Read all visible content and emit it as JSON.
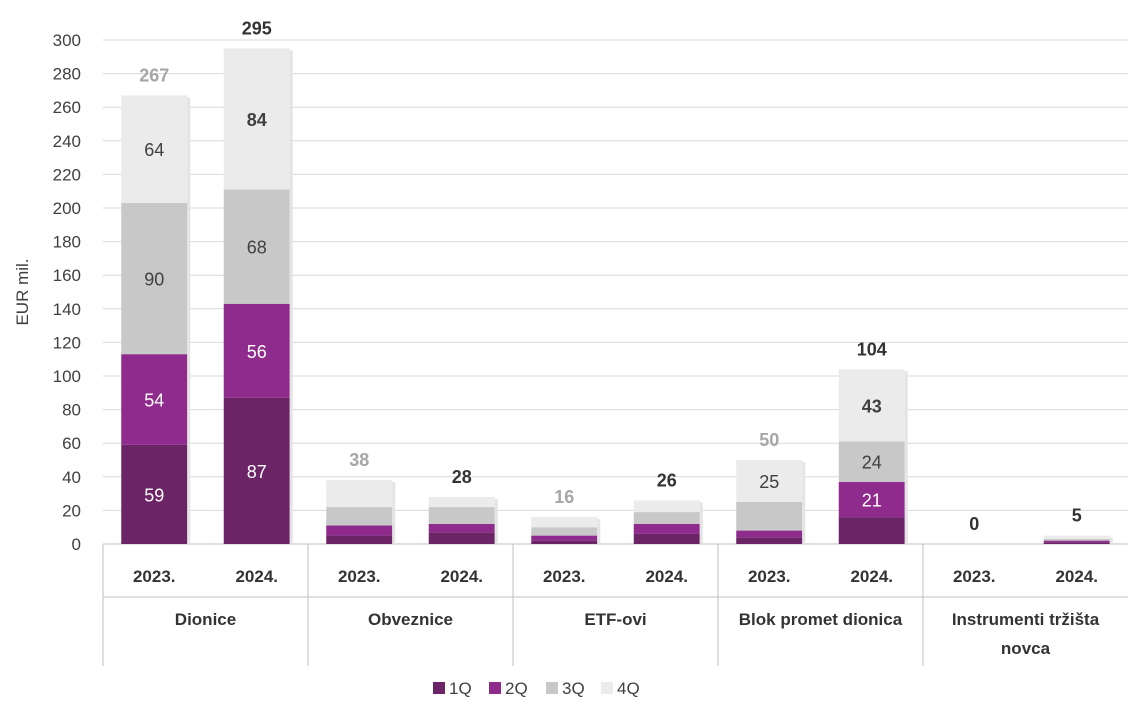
{
  "chart_data": {
    "type": "bar",
    "stacked": true,
    "ylabel": "EUR mil.",
    "ylim": [
      0,
      300
    ],
    "ytick_step": 20,
    "grid": true,
    "legend_position": "bottom",
    "groups": [
      "Dionice",
      "Obveznice",
      "ETF-ovi",
      "Blok promet dionica",
      "Instrumenti tržišta novca"
    ],
    "years": [
      "2023.",
      "2024."
    ],
    "categories": [
      "Dionice 2023.",
      "Dionice 2024.",
      "Obveznice 2023.",
      "Obveznice 2024.",
      "ETF-ovi 2023.",
      "ETF-ovi 2024.",
      "Blok promet dionica 2023.",
      "Blok promet dionica 2024.",
      "Instrumenti tržišta novca 2023.",
      "Instrumenti tržišta novca 2024."
    ],
    "series": [
      {
        "name": "1Q",
        "color": "#6b2466",
        "values": [
          59,
          87,
          5,
          7,
          2,
          6,
          4,
          16,
          0,
          1
        ]
      },
      {
        "name": "2Q",
        "color": "#8e2b8c",
        "values": [
          54,
          56,
          6,
          5,
          3,
          6,
          4,
          21,
          0,
          1
        ]
      },
      {
        "name": "3Q",
        "color": "#c8c8c8",
        "values": [
          90,
          68,
          11,
          10,
          5,
          7,
          17,
          24,
          0,
          1
        ]
      },
      {
        "name": "4Q",
        "color": "#ebebeb",
        "values": [
          64,
          84,
          16,
          6,
          6,
          7,
          25,
          43,
          0,
          2
        ]
      }
    ],
    "segment_labels": [
      [
        "59",
        "87",
        null,
        null,
        null,
        null,
        null,
        null,
        null,
        null
      ],
      [
        "54",
        "56",
        null,
        null,
        null,
        null,
        null,
        "21",
        null,
        null
      ],
      [
        "90",
        "68",
        null,
        null,
        null,
        null,
        null,
        "24",
        null,
        null
      ],
      [
        "64",
        "84",
        null,
        null,
        null,
        null,
        "25",
        "43",
        null,
        null
      ]
    ],
    "segment_label_bold": [
      [
        false,
        false,
        false,
        false,
        false,
        false,
        false,
        false,
        false,
        false
      ],
      [
        false,
        false,
        false,
        false,
        false,
        false,
        false,
        false,
        false,
        false
      ],
      [
        false,
        false,
        false,
        false,
        false,
        false,
        false,
        false,
        false,
        false
      ],
      [
        false,
        true,
        false,
        false,
        false,
        false,
        false,
        true,
        false,
        false
      ]
    ],
    "totals": [
      "267",
      "295",
      "38",
      "28",
      "16",
      "26",
      "50",
      "104",
      "0",
      "5"
    ],
    "total_colors": [
      "#a6a6a6",
      "#333333",
      "#a6a6a6",
      "#333333",
      "#a6a6a6",
      "#333333",
      "#a6a6a6",
      "#333333",
      "#333333",
      "#333333"
    ]
  }
}
